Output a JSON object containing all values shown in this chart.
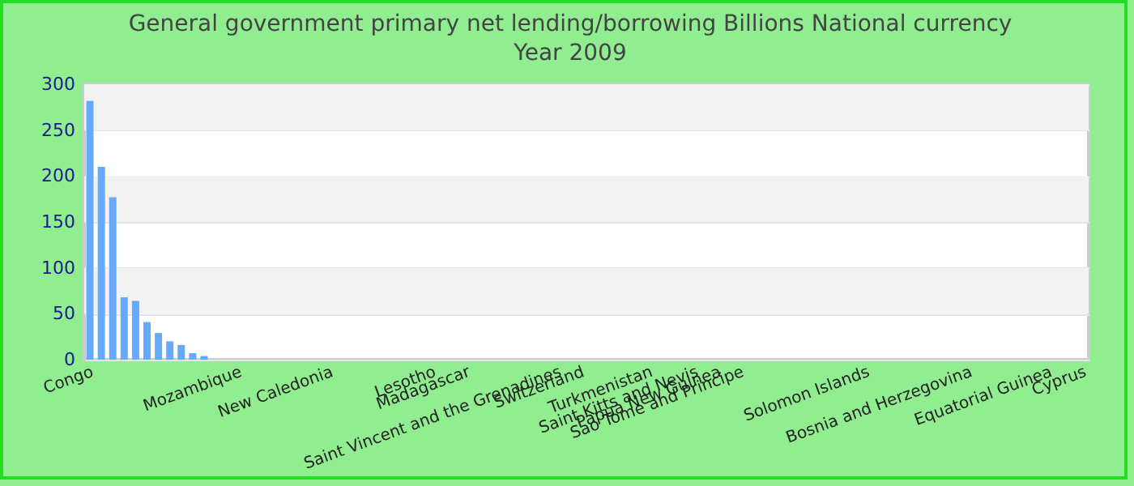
{
  "chart_data": {
    "type": "bar",
    "title": "General government primary net lending/borrowing Billions National currency",
    "subtitle": "Year 2009",
    "categories": [
      "Congo",
      null,
      null,
      null,
      null,
      null,
      null,
      null,
      null,
      null,
      null,
      null,
      null,
      "Mozambique",
      null,
      null,
      null,
      null,
      null,
      null,
      null,
      "New Caledonia",
      null,
      null,
      null,
      null,
      null,
      null,
      null,
      null,
      "Lesotho",
      null,
      null,
      "Madagascar",
      null,
      null,
      null,
      null,
      null,
      null,
      null,
      "Saint Vincent and the Grenadines",
      null,
      "Switzerland",
      null,
      null,
      null,
      null,
      null,
      "Turkmenistan",
      null,
      null,
      null,
      "Saint Kitts and Nevis",
      null,
      "Papua New Guinea",
      null,
      "Sao Tome and Principe",
      null,
      null,
      null,
      null,
      null,
      null,
      null,
      null,
      null,
      null,
      "Solomon Islands",
      null,
      null,
      null,
      null,
      null,
      null,
      null,
      null,
      "Bosnia and Herzegovina",
      null,
      null,
      null,
      null,
      null,
      null,
      "Equatorial Guinea",
      null,
      null,
      "Cyprus"
    ],
    "values": [
      282,
      210,
      177,
      68,
      64,
      41,
      29,
      20,
      16,
      7,
      4,
      null,
      null,
      null,
      null,
      null,
      null,
      null,
      null,
      null,
      null,
      null,
      null,
      null,
      null,
      null,
      null,
      null,
      null,
      null,
      null,
      null,
      null,
      null,
      null,
      null,
      null,
      null,
      null,
      null,
      null,
      null,
      null,
      null,
      null,
      null,
      null,
      null,
      null,
      null,
      null,
      null,
      null,
      null,
      null,
      null,
      null,
      null,
      null,
      null,
      null,
      null,
      null,
      null,
      null,
      null,
      null,
      null,
      null,
      null,
      null,
      null,
      null,
      null,
      null,
      null,
      null,
      null,
      null,
      null,
      null,
      null,
      null,
      null,
      null,
      null,
      null,
      null
    ],
    "color": "#66aaff",
    "ylim": [
      0,
      300
    ],
    "yticks": [
      0,
      50,
      100,
      150,
      200,
      250,
      300
    ],
    "grid": "y"
  }
}
